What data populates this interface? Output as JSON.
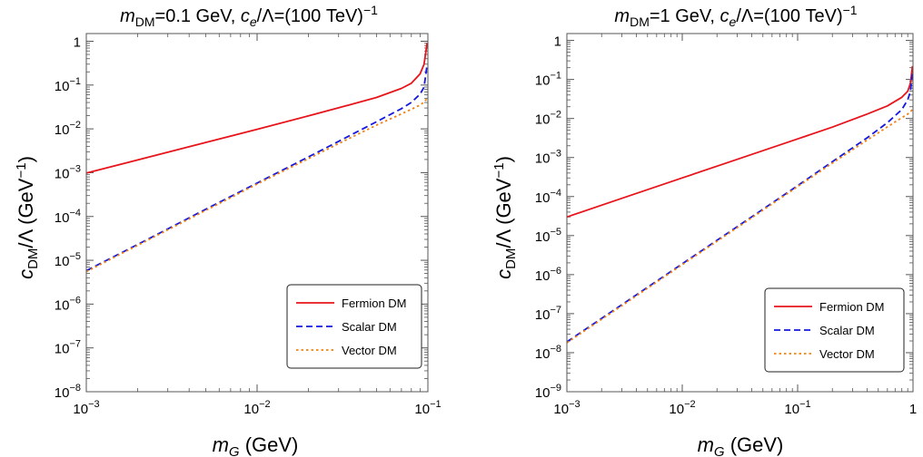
{
  "chart_data": [
    {
      "type": "line",
      "title": {
        "m_symbol": "m",
        "m_sub": "DM",
        "m_value": "=0.1 GeV, ",
        "c_symbol": "c",
        "c_sub": "e",
        "c_rest": "/Λ=(100 TeV)",
        "c_sup": "−1"
      },
      "xlabel": {
        "symbol": "m",
        "sub": "G",
        "unit": " (GeV)"
      },
      "ylabel": {
        "symbol": "c",
        "sub": "DM",
        "rest": "/Λ (GeV",
        "sup": "−1",
        "close": ")"
      },
      "x_scale": "log",
      "y_scale": "log",
      "xlim": [
        0.001,
        0.1
      ],
      "ylim": [
        1e-08,
        1.5
      ],
      "x_ticks": [
        {
          "value": 0.001,
          "base": "10",
          "exp": "−3"
        },
        {
          "value": 0.01,
          "base": "10",
          "exp": "−2"
        },
        {
          "value": 0.1,
          "base": "10",
          "exp": "−1"
        }
      ],
      "y_ticks": [
        {
          "value": 1e-08,
          "base": "10",
          "exp": "−8"
        },
        {
          "value": 1e-07,
          "base": "10",
          "exp": "−7"
        },
        {
          "value": 1e-06,
          "base": "10",
          "exp": "−6"
        },
        {
          "value": 1e-05,
          "base": "10",
          "exp": "−5"
        },
        {
          "value": 0.0001,
          "base": "10",
          "exp": "−4"
        },
        {
          "value": 0.001,
          "base": "10",
          "exp": "−3"
        },
        {
          "value": 0.01,
          "base": "10",
          "exp": "−2"
        },
        {
          "value": 0.1,
          "base": "10",
          "exp": "−1"
        },
        {
          "value": 1,
          "base": "1",
          "exp": ""
        }
      ],
      "grid": false,
      "legend_position": "bottom-right",
      "series": [
        {
          "name": "Fermion DM",
          "color": "#e8141b",
          "dash": "solid",
          "x": [
            0.001,
            0.002,
            0.005,
            0.01,
            0.02,
            0.03,
            0.05,
            0.07,
            0.08,
            0.09,
            0.095,
            0.099
          ],
          "y": [
            0.00098,
            0.00195,
            0.0049,
            0.0098,
            0.0198,
            0.0302,
            0.052,
            0.084,
            0.11,
            0.18,
            0.3,
            0.92
          ]
        },
        {
          "name": "Scalar DM",
          "color": "#1418e0",
          "dash": "dashed",
          "x": [
            0.001,
            0.002,
            0.005,
            0.01,
            0.02,
            0.03,
            0.05,
            0.07,
            0.08,
            0.09,
            0.095,
            0.099
          ],
          "y": [
            5.8e-06,
            2.3e-05,
            0.000146,
            0.00058,
            0.0023,
            0.0052,
            0.0145,
            0.029,
            0.04,
            0.062,
            0.09,
            0.3
          ]
        },
        {
          "name": "Vector DM",
          "color": "#f08214",
          "dash": "dotted",
          "x": [
            0.001,
            0.002,
            0.005,
            0.01,
            0.02,
            0.03,
            0.05,
            0.07,
            0.08,
            0.09,
            0.095,
            0.099
          ],
          "y": [
            5.5e-06,
            2.2e-05,
            0.000137,
            0.00055,
            0.0021,
            0.0046,
            0.0122,
            0.022,
            0.028,
            0.035,
            0.041,
            0.05
          ]
        }
      ]
    },
    {
      "type": "line",
      "title": {
        "m_symbol": "m",
        "m_sub": "DM",
        "m_value": "=1 GeV, ",
        "c_symbol": "c",
        "c_sub": "e",
        "c_rest": "/Λ=(100 TeV)",
        "c_sup": "−1"
      },
      "xlabel": {
        "symbol": "m",
        "sub": "G",
        "unit": " (GeV)"
      },
      "ylabel": {
        "symbol": "c",
        "sub": "DM",
        "rest": "/Λ (GeV",
        "sup": "−1",
        "close": ")"
      },
      "x_scale": "log",
      "y_scale": "log",
      "xlim": [
        0.001,
        1
      ],
      "ylim": [
        1e-09,
        1.5
      ],
      "x_ticks": [
        {
          "value": 0.001,
          "base": "10",
          "exp": "−3"
        },
        {
          "value": 0.01,
          "base": "10",
          "exp": "−2"
        },
        {
          "value": 0.1,
          "base": "10",
          "exp": "−1"
        },
        {
          "value": 1,
          "base": "1",
          "exp": ""
        }
      ],
      "y_ticks": [
        {
          "value": 1e-09,
          "base": "10",
          "exp": "−9"
        },
        {
          "value": 1e-08,
          "base": "10",
          "exp": "−8"
        },
        {
          "value": 1e-07,
          "base": "10",
          "exp": "−7"
        },
        {
          "value": 1e-06,
          "base": "10",
          "exp": "−6"
        },
        {
          "value": 1e-05,
          "base": "10",
          "exp": "−5"
        },
        {
          "value": 0.0001,
          "base": "10",
          "exp": "−4"
        },
        {
          "value": 0.001,
          "base": "10",
          "exp": "−3"
        },
        {
          "value": 0.01,
          "base": "10",
          "exp": "−2"
        },
        {
          "value": 0.1,
          "base": "10",
          "exp": "−1"
        },
        {
          "value": 1,
          "base": "1",
          "exp": ""
        }
      ],
      "grid": false,
      "legend_position": "bottom-right",
      "series": [
        {
          "name": "Fermion DM",
          "color": "#e8141b",
          "dash": "solid",
          "x": [
            0.001,
            0.003,
            0.01,
            0.03,
            0.1,
            0.2,
            0.4,
            0.6,
            0.8,
            0.9,
            0.95,
            0.99
          ],
          "y": [
            3e-05,
            9e-05,
            0.0003,
            0.0009,
            0.003,
            0.006,
            0.013,
            0.021,
            0.035,
            0.05,
            0.08,
            0.22
          ]
        },
        {
          "name": "Scalar DM",
          "color": "#1418e0",
          "dash": "dashed",
          "x": [
            0.001,
            0.003,
            0.01,
            0.03,
            0.1,
            0.2,
            0.4,
            0.6,
            0.8,
            0.9,
            0.95,
            0.99
          ],
          "y": [
            1.9e-08,
            1.7e-07,
            1.9e-06,
            1.7e-05,
            0.00019,
            0.00078,
            0.0032,
            0.0078,
            0.017,
            0.03,
            0.05,
            0.15
          ]
        },
        {
          "name": "Vector DM",
          "color": "#f08214",
          "dash": "dotted",
          "x": [
            0.001,
            0.003,
            0.01,
            0.03,
            0.1,
            0.2,
            0.4,
            0.6,
            0.8,
            0.9,
            0.95,
            0.99
          ],
          "y": [
            1.8e-08,
            1.6e-07,
            1.8e-06,
            1.6e-05,
            0.00018,
            0.00072,
            0.0028,
            0.0061,
            0.0105,
            0.013,
            0.015,
            0.017
          ]
        }
      ]
    }
  ]
}
